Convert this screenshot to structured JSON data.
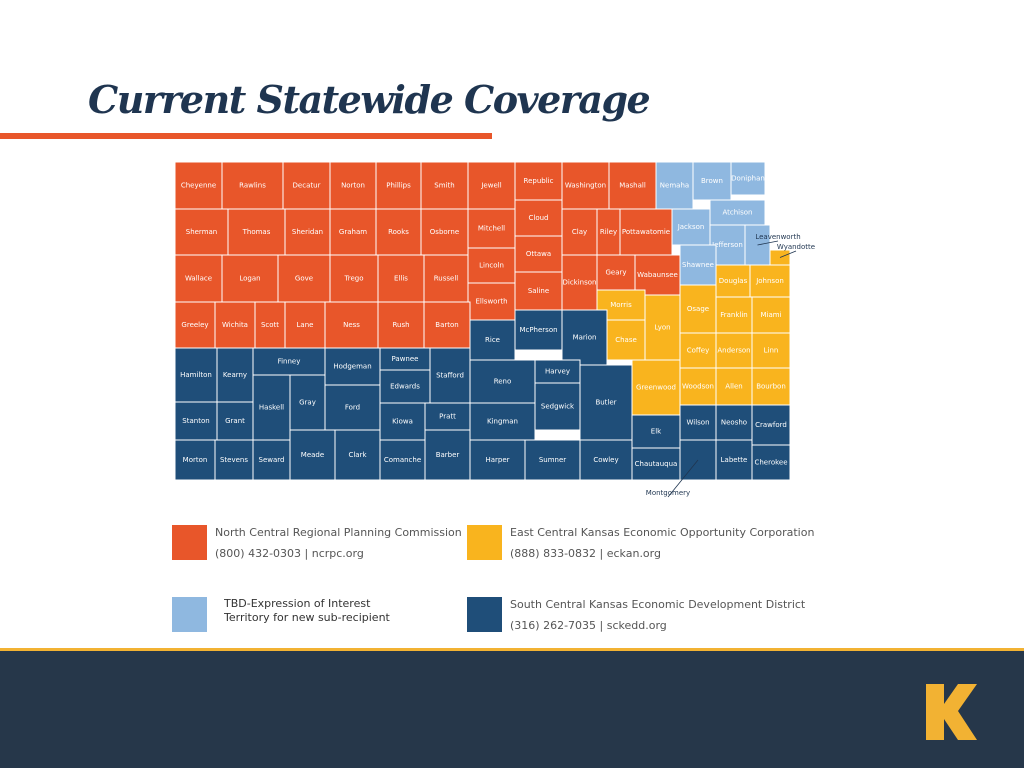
{
  "title": "Current Statewide Coverage",
  "regions": [
    {
      "name": "North Central Regional Planning Commission",
      "contact": "(800) 432-0303  |  ncrpc.org",
      "color": "#e8562a",
      "counties": [
        "Cheyenne",
        "Rawlins",
        "Decatur",
        "Norton",
        "Phillips",
        "Smith",
        "Jewell",
        "Republic",
        "Washington",
        "Mashall",
        "Sherman",
        "Thomas",
        "Sheridan",
        "Graham",
        "Rooks",
        "Osborne",
        "Mitchell",
        "Cloud",
        "Clay",
        "Riley",
        "Pottawatomie",
        "Wallace",
        "Logan",
        "Gove",
        "Trego",
        "Ellis",
        "Russell",
        "Lincoln",
        "Ottawa",
        "Saline",
        "Ellsworth",
        "Dickinson",
        "Geary",
        "Wabaunsee",
        "Greeley",
        "Wichita",
        "Scott",
        "Lane",
        "Ness",
        "Rush",
        "Barton"
      ]
    },
    {
      "name": "East Central Kansas Economic Opportunity Corporation",
      "contact": "(888) 833-0832  |  eckan.org",
      "color": "#f9b41e",
      "counties": [
        "Wyandotte",
        "Douglas",
        "Johnson",
        "Morris",
        "Chase",
        "Lyon",
        "Osage",
        "Franklin",
        "Miami",
        "Coffey",
        "Anderson",
        "Linn",
        "Greenwood",
        "Woodson",
        "Allen",
        "Bourbon"
      ]
    },
    {
      "name": "TBD-Expression of Interest Territory for new sub-recipient",
      "color": "#8fb8e0",
      "counties": [
        "Nemaha",
        "Brown",
        "Doniphan",
        "Jackson",
        "Atchison",
        "Jefferson",
        "Leavenworth",
        "Shawnee"
      ]
    },
    {
      "name": "South Central Kansas Economic Development District",
      "contact": "(316) 262-7035  |  sckedd.org",
      "color": "#1f4e79",
      "counties": [
        "Rice",
        "McPherson",
        "Marion",
        "Hamilton",
        "Kearny",
        "Finney",
        "Hodgeman",
        "Pawnee",
        "Edwards",
        "Stafford",
        "Reno",
        "Harvey",
        "Gray",
        "Ford",
        "Sedgwick",
        "Butler",
        "Stanton",
        "Grant",
        "Haskell",
        "Kiowa",
        "Pratt",
        "Kingman",
        "Wilson",
        "Neosho",
        "Crawford",
        "Elk",
        "Morton",
        "Stevens",
        "Seward",
        "Meade",
        "Clark",
        "Comanche",
        "Barber",
        "Harper",
        "Sumner",
        "Cowley",
        "Chautauqua",
        "Montgomery",
        "Labette",
        "Cherokee"
      ]
    }
  ]
}
